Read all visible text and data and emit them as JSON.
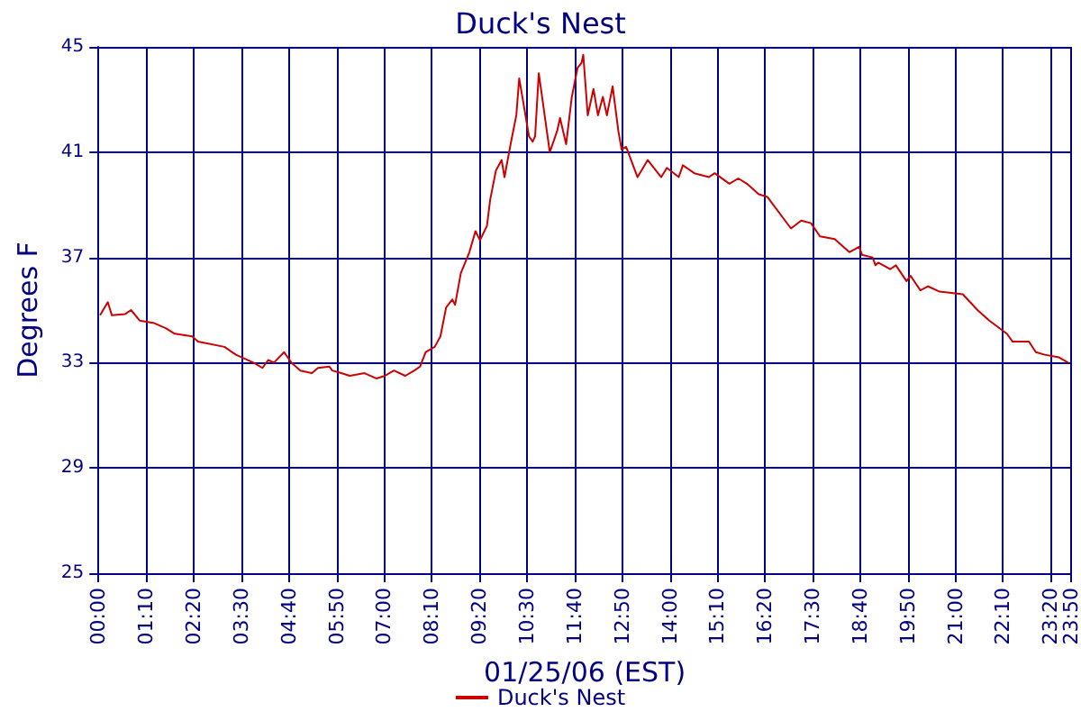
{
  "chart_data": {
    "type": "line",
    "title": "Duck's Nest",
    "xlabel": "01/25/06 (EST)",
    "ylabel": "Degrees F",
    "x": [
      0.04,
      0.23,
      0.33,
      0.66,
      0.8,
      1.01,
      1.37,
      1.66,
      1.87,
      2.3,
      2.44,
      3.09,
      3.37,
      3.8,
      4.02,
      4.16,
      4.3,
      4.55,
      4.73,
      4.95,
      5.23,
      5.38,
      5.66,
      5.73,
      5.95,
      6.16,
      6.52,
      6.81,
      7.02,
      7.24,
      7.52,
      7.74,
      7.88,
      8.02,
      8.24,
      8.38,
      8.52,
      8.67,
      8.74,
      8.88,
      9.09,
      9.24,
      9.35,
      9.52,
      9.6,
      9.74,
      9.88,
      9.95,
      10.1,
      10.24,
      10.31,
      10.41,
      10.55,
      10.64,
      10.7,
      10.79,
      10.88,
      11.06,
      11.24,
      11.31,
      11.46,
      11.6,
      11.74,
      11.84,
      11.88,
      11.99,
      12.13,
      12.24,
      12.36,
      12.46,
      12.6,
      12.74,
      12.82,
      12.93,
      13.21,
      13.46,
      13.79,
      13.93,
      14.22,
      14.32,
      14.6,
      14.96,
      15.1,
      15.46,
      15.68,
      15.89,
      16.18,
      16.39,
      16.97,
      17.22,
      17.46,
      17.68,
      18.04,
      18.4,
      18.64,
      18.71,
      18.97,
      19.04,
      19.11,
      19.4,
      19.54,
      19.8,
      19.9,
      20.14,
      20.33,
      20.61,
      20.9,
      21.18,
      21.54,
      21.83,
      22.26,
      22.4,
      22.8,
      22.97,
      23.19,
      23.54,
      23.76
    ],
    "series": [
      {
        "name": "Duck's Nest",
        "color": "#cc0000",
        "values": [
          34.8,
          35.3,
          34.8,
          34.85,
          35.0,
          34.6,
          34.5,
          34.3,
          34.1,
          34.0,
          33.8,
          33.6,
          33.3,
          33.0,
          32.8,
          33.1,
          33.0,
          33.4,
          33.0,
          32.7,
          32.6,
          32.8,
          32.85,
          32.7,
          32.6,
          32.5,
          32.6,
          32.4,
          32.5,
          32.7,
          32.5,
          32.7,
          32.85,
          33.4,
          33.6,
          34.0,
          35.1,
          35.4,
          35.2,
          36.4,
          37.2,
          38.0,
          37.65,
          38.2,
          39.2,
          40.3,
          40.7,
          40.05,
          41.3,
          42.4,
          43.8,
          42.9,
          41.6,
          41.4,
          41.6,
          44.0,
          43.0,
          41.0,
          41.8,
          42.3,
          41.3,
          43.1,
          44.2,
          44.4,
          44.7,
          42.4,
          43.4,
          42.4,
          43.1,
          42.4,
          43.5,
          41.8,
          41.1,
          41.2,
          40.05,
          40.7,
          40.05,
          40.4,
          40.05,
          40.5,
          40.2,
          40.05,
          40.2,
          39.8,
          40.0,
          39.8,
          39.4,
          39.3,
          38.1,
          38.4,
          38.3,
          37.8,
          37.7,
          37.2,
          37.4,
          37.1,
          37.0,
          36.7,
          36.8,
          36.55,
          36.7,
          36.1,
          36.3,
          35.75,
          35.9,
          35.7,
          35.65,
          35.6,
          35.0,
          34.6,
          34.1,
          33.8,
          33.8,
          33.4,
          33.3,
          33.2,
          33.0
        ]
      }
    ],
    "xlim": [
      0,
      23.8333
    ],
    "xticks": [
      {
        "value": 0,
        "label": "00:00"
      },
      {
        "value": 1.1667,
        "label": "01:10"
      },
      {
        "value": 2.3333,
        "label": "02:20"
      },
      {
        "value": 3.5,
        "label": "03:30"
      },
      {
        "value": 4.6667,
        "label": "04:40"
      },
      {
        "value": 5.8333,
        "label": "05:50"
      },
      {
        "value": 7,
        "label": "07:00"
      },
      {
        "value": 8.1667,
        "label": "08:10"
      },
      {
        "value": 9.3333,
        "label": "09:20"
      },
      {
        "value": 10.5,
        "label": "10:30"
      },
      {
        "value": 11.6667,
        "label": "11:40"
      },
      {
        "value": 12.8333,
        "label": "12:50"
      },
      {
        "value": 14,
        "label": "14:00"
      },
      {
        "value": 15.1667,
        "label": "15:10"
      },
      {
        "value": 16.3333,
        "label": "16:20"
      },
      {
        "value": 17.5,
        "label": "17:30"
      },
      {
        "value": 18.6667,
        "label": "18:40"
      },
      {
        "value": 19.8333,
        "label": "19:50"
      },
      {
        "value": 21,
        "label": "21:00"
      },
      {
        "value": 22.1667,
        "label": "22:10"
      },
      {
        "value": 23.3333,
        "label": "23:20"
      },
      {
        "value": 23.8333,
        "label": "23:50"
      }
    ],
    "ylim": [
      25,
      45
    ],
    "yticks": [
      25,
      29,
      33,
      37,
      41,
      45
    ],
    "grid": true,
    "legend": "bottom",
    "marker": "none",
    "line_style": "solid"
  }
}
